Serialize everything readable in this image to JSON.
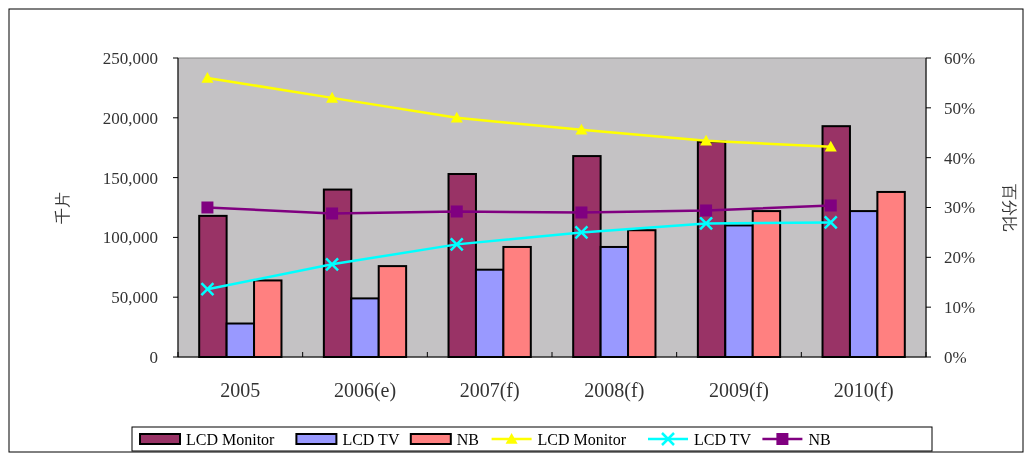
{
  "chart_data": {
    "type": "bar",
    "categories": [
      "2005",
      "2006(e)",
      "2007(f)",
      "2008(f)",
      "2009(f)",
      "2010(f)"
    ],
    "ylabel": "千片",
    "y2label": "百分比",
    "ylim": [
      0,
      250000
    ],
    "yticks": [
      {
        "value": 0,
        "label": "0"
      },
      {
        "value": 50000,
        "label": "50,000"
      },
      {
        "value": 100000,
        "label": "100,000"
      },
      {
        "value": 150000,
        "label": "150,000"
      },
      {
        "value": 200000,
        "label": "200,000"
      },
      {
        "value": 250000,
        "label": "250,000"
      }
    ],
    "y2lim": [
      0,
      60
    ],
    "y2ticks": [
      {
        "value": 0,
        "label": "0%"
      },
      {
        "value": 10,
        "label": "10%"
      },
      {
        "value": 20,
        "label": "20%"
      },
      {
        "value": 30,
        "label": "30%"
      },
      {
        "value": 40,
        "label": "40%"
      },
      {
        "value": 50,
        "label": "50%"
      },
      {
        "value": 60,
        "label": "60%"
      }
    ],
    "grid": false,
    "legend": "bottom",
    "series": [
      {
        "name": "LCD Monitor",
        "color": "#993366",
        "values": [
          118000,
          140000,
          153000,
          168000,
          180000,
          193000
        ]
      },
      {
        "name": "LCD TV",
        "color": "#9999ff",
        "values": [
          28000,
          49000,
          73000,
          92000,
          110000,
          122000
        ]
      },
      {
        "name": "NB",
        "color": "#ff8080",
        "values": [
          64000,
          76000,
          92000,
          106000,
          122000,
          138000
        ]
      },
      {
        "name": "LCD Monitor",
        "type": "line",
        "axis": "y2",
        "marker": "triangle",
        "color": "#ffff00",
        "values": [
          56,
          52,
          48,
          45.6,
          43.4,
          42.2
        ]
      },
      {
        "name": "LCD TV",
        "type": "line",
        "axis": "y2",
        "marker": "cross",
        "color": "#00ffff",
        "values": [
          13.6,
          18.6,
          22.6,
          25,
          26.8,
          27
        ]
      },
      {
        "name": "NB",
        "type": "line",
        "axis": "y2",
        "marker": "square",
        "color": "#800080",
        "values": [
          30,
          28.8,
          29.2,
          29,
          29.4,
          30.4
        ]
      }
    ]
  }
}
